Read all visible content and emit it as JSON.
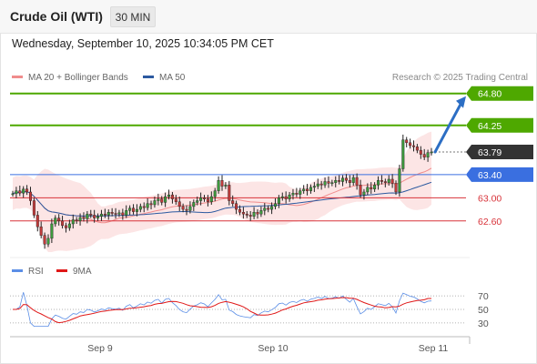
{
  "header": {
    "title": "Crude Oil (WTI)",
    "timeframe": "30 MIN"
  },
  "datetime": "Wednesday, September 10, 2025 10:34:05 PM CET",
  "legend": {
    "bollinger": "MA 20 + Bollinger Bands",
    "ma50": "MA 50",
    "copyright": "Research © 2025 Trading Central"
  },
  "rsi_legend": {
    "rsi": "RSI",
    "ma9": "9MA"
  },
  "colors": {
    "resistance": "#4ea800",
    "support": "#d8333a",
    "ma50": "#2c5aa0",
    "pivot": "#3a6fe0",
    "last_price": "#333333",
    "bollinger_band": "#fbe0e0",
    "bollinger_line": "#f08c8c",
    "forecast_arrow": "#2c6ec4"
  },
  "chart_data": [
    {
      "type": "candlestick",
      "title": "Crude Oil (WTI) 30 MIN",
      "x_ticks": [
        "Sep 9",
        "Sep 10",
        "Sep 11"
      ],
      "price_levels": [
        {
          "value": 64.8,
          "label": "64.80",
          "kind": "resistance"
        },
        {
          "value": 64.25,
          "label": "64.25",
          "kind": "resistance"
        },
        {
          "value": 63.79,
          "label": "63.79",
          "kind": "last"
        },
        {
          "value": 63.4,
          "label": "63.40",
          "kind": "pivot"
        },
        {
          "value": 63.0,
          "label": "63.00",
          "kind": "support"
        },
        {
          "value": 62.6,
          "label": "62.60",
          "kind": "support"
        }
      ],
      "ylim": [
        62.0,
        65.0
      ],
      "close_series": [
        63.07,
        63.12,
        63.08,
        63.15,
        63.1,
        62.95,
        62.7,
        62.5,
        62.35,
        62.2,
        62.3,
        62.55,
        62.65,
        62.6,
        62.52,
        62.48,
        62.55,
        62.62,
        62.6,
        62.66,
        62.64,
        62.72,
        62.7,
        62.65,
        62.68,
        62.72,
        62.7,
        62.75,
        62.73,
        62.72,
        62.74,
        62.7,
        62.78,
        62.82,
        62.76,
        62.8,
        62.85,
        62.83,
        62.9,
        62.88,
        62.95,
        62.98,
        62.92,
        63.02,
        63.05,
        62.98,
        62.93,
        62.85,
        62.8,
        62.78,
        62.85,
        62.92,
        62.95,
        63.0,
        62.98,
        62.93,
        63.02,
        63.12,
        63.3,
        63.2,
        63.22,
        62.95,
        62.9,
        62.8,
        62.75,
        62.72,
        62.7,
        62.68,
        62.75,
        62.72,
        62.78,
        62.82,
        62.8,
        62.85,
        62.9,
        63.0,
        63.02,
        62.98,
        63.05,
        63.08,
        63.06,
        63.12,
        63.15,
        63.12,
        63.18,
        63.2,
        63.24,
        63.22,
        63.28,
        63.25,
        63.26,
        63.3,
        63.28,
        63.34,
        63.3,
        63.26,
        63.35,
        63.22,
        63.05,
        63.1,
        63.18,
        63.15,
        63.22,
        63.3,
        63.28,
        63.26,
        63.32,
        63.25,
        63.1,
        63.5,
        64.0,
        63.95,
        63.9,
        63.88,
        63.82,
        63.75,
        63.7,
        63.78,
        63.79
      ],
      "rsi": {
        "levels": [
          70,
          50,
          30
        ],
        "ylim": [
          15,
          85
        ],
        "series": [
          {
            "name": "RSI"
          },
          {
            "name": "9MA"
          }
        ]
      }
    }
  ]
}
